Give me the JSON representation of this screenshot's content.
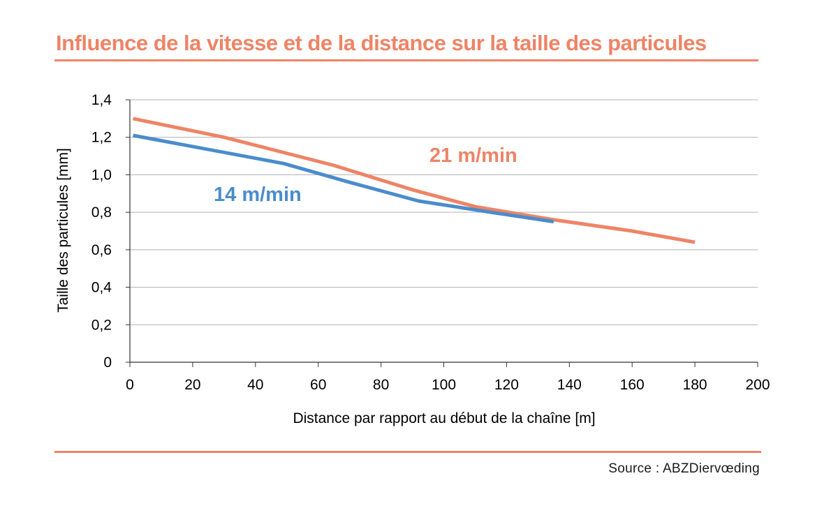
{
  "title": "Influence de la vitesse et de la distance sur la taille des particules",
  "source": "Source : ABZDiervœding",
  "colors": {
    "accent": "#ee8466",
    "series_14": "#4a8ccc",
    "series_21": "#ee8466",
    "grid": "#b0b0b0"
  },
  "chart_data": {
    "type": "line",
    "xlabel": "Distance par rapport au début de la chaîne [m]",
    "ylabel": "Taille des particules [mm]",
    "xlim": [
      0,
      200
    ],
    "ylim": [
      0,
      1.4
    ],
    "x_ticks": [
      0,
      20,
      40,
      60,
      80,
      100,
      120,
      140,
      160,
      180,
      200
    ],
    "x_tick_labels": [
      "0",
      "20",
      "40",
      "60",
      "80",
      "100",
      "120",
      "140",
      "160",
      "180",
      "200"
    ],
    "y_ticks": [
      0,
      0.2,
      0.4,
      0.6,
      0.8,
      1.0,
      1.2,
      1.4
    ],
    "y_tick_labels": [
      "0",
      "0,2",
      "0,4",
      "0,6",
      "0,8",
      "1,0",
      "1,2",
      "1,4"
    ],
    "grid": "horizontal",
    "series": [
      {
        "name": "14 m/min",
        "color": "#4a8ccc",
        "points": [
          [
            1,
            1.21
          ],
          [
            49,
            1.06
          ],
          [
            70,
            0.96
          ],
          [
            92,
            0.86
          ],
          [
            115,
            0.8
          ],
          [
            135,
            0.75
          ]
        ]
      },
      {
        "name": "21 m/min",
        "color": "#ee8466",
        "points": [
          [
            1,
            1.3
          ],
          [
            30,
            1.2
          ],
          [
            65,
            1.05
          ],
          [
            90,
            0.92
          ],
          [
            110,
            0.83
          ],
          [
            135,
            0.76
          ],
          [
            160,
            0.7
          ],
          [
            180,
            0.64
          ]
        ]
      }
    ]
  }
}
